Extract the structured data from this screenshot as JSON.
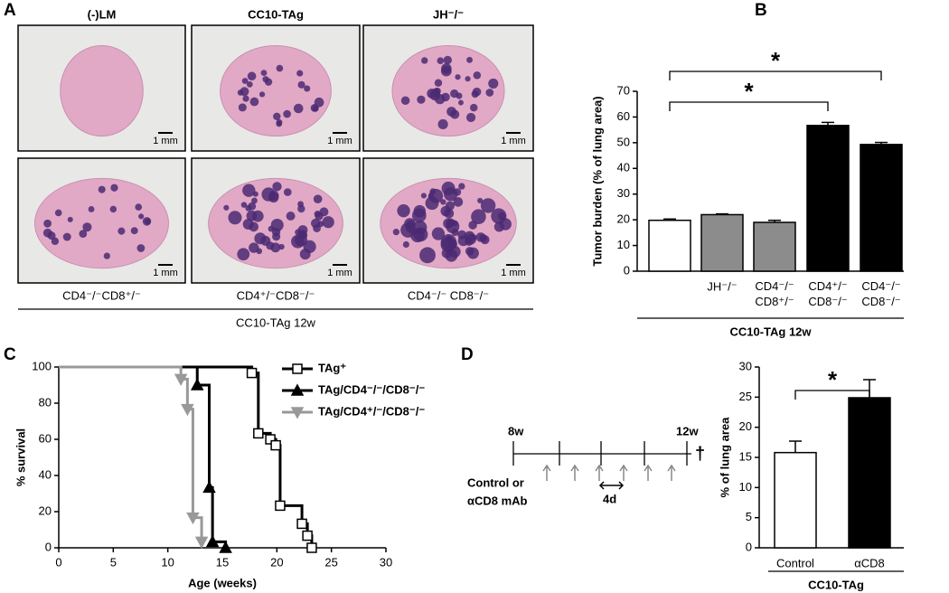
{
  "panel_labels": [
    "A",
    "B",
    "C",
    "D"
  ],
  "panel_a": {
    "columns": [
      "(-)LM",
      "CC10-TAg",
      "JH⁻/⁻"
    ],
    "row_labels": [
      "CD4⁻/⁻CD8⁺/⁻",
      "CD4⁺/⁻CD8⁻/⁻",
      "CD4⁻/⁻ CD8⁻/⁻"
    ],
    "scale_bar": "1 mm",
    "footer": "CC10-TAg 12w"
  },
  "timeline": {
    "start": "8w",
    "end": "12w",
    "treatment": [
      "Control or",
      "αCD8 mAb"
    ],
    "interval": "4d",
    "endpoint": "†"
  },
  "chart_data": [
    {
      "type": "bar",
      "ylabel": "Tumor burden (% of lung area)",
      "categories": [
        null,
        "JH⁻/⁻",
        "CD4⁻/⁻\nCD8⁺/⁻",
        "CD4⁺/⁻\nCD8⁻/⁻",
        "CD4⁻/⁻\nCD8⁻/⁻"
      ],
      "values": [
        19.8,
        22,
        19,
        56.7,
        49.3
      ],
      "errors": [
        0.5,
        0.3,
        0.8,
        1.2,
        0.8
      ],
      "colors": [
        "#ffffff",
        "#8c8c8c",
        "#8c8c8c",
        "#000000",
        "#000000"
      ],
      "ylim": [
        0,
        70
      ],
      "yticks": [
        0,
        10,
        20,
        30,
        40,
        50,
        60,
        70
      ],
      "annotations": [
        "*",
        "*"
      ],
      "footer": "CC10-TAg 12w"
    },
    {
      "type": "survival",
      "xlabel": "Age (weeks)",
      "ylabel": "% survival",
      "xlim": [
        0,
        30
      ],
      "ylim": [
        0,
        100
      ],
      "xticks": [
        0,
        5,
        10,
        15,
        20,
        25,
        30
      ],
      "yticks": [
        0,
        20,
        40,
        60,
        80,
        100
      ],
      "series": [
        {
          "name": "TAg⁺",
          "color": "#000000",
          "marker": "square",
          "marker_fill": "#ffffff",
          "x": [
            0,
            17.7,
            18.3,
            19.4,
            19.9,
            20.3,
            22.3,
            22.8,
            23.2
          ],
          "values": [
            100,
            96.7,
            63.3,
            60,
            56.7,
            23.3,
            13.3,
            6.7,
            0
          ]
        },
        {
          "name": "TAg/CD4⁻/⁻/CD8⁻/⁻",
          "color": "#000000",
          "marker": "triangle",
          "marker_fill": "#000000",
          "x": [
            0,
            12.7,
            13.8,
            14.1,
            15.3
          ],
          "values": [
            100,
            90,
            33.3,
            3.3,
            0
          ]
        },
        {
          "name": "TAg/CD4⁺/⁻/CD8⁻/⁻",
          "color": "#999999",
          "marker": "triangle-down",
          "marker_fill": "#999999",
          "x": [
            0,
            11.2,
            11.8,
            12.3,
            13.1
          ],
          "values": [
            100,
            93.3,
            76.7,
            16.7,
            3.3
          ]
        }
      ]
    },
    {
      "type": "bar",
      "ylabel": "% of lung area",
      "categories": [
        "Control",
        "αCD8"
      ],
      "values": [
        15.8,
        24.9
      ],
      "errors": [
        1.9,
        3.0
      ],
      "colors": [
        "#ffffff",
        "#000000"
      ],
      "ylim": [
        0,
        30
      ],
      "yticks": [
        0,
        5,
        10,
        15,
        20,
        25,
        30
      ],
      "annotations": [
        "*"
      ],
      "footer": "CC10-TAg"
    }
  ]
}
